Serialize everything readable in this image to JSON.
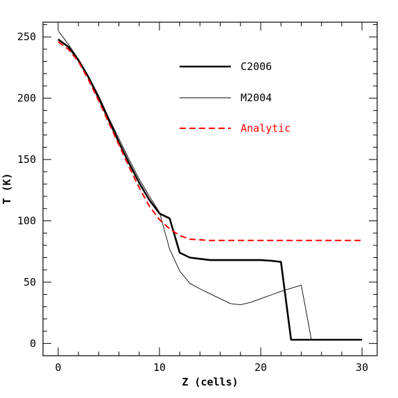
{
  "chart_data": {
    "type": "line",
    "xlabel": "Z (cells)",
    "ylabel": "T (K)",
    "xlim": [
      -1.5,
      31.5
    ],
    "ylim": [
      -10,
      262
    ],
    "xticks": [
      0,
      10,
      20,
      30
    ],
    "yticks": [
      0,
      50,
      100,
      150,
      200,
      250
    ],
    "xtick_labels": [
      "0",
      "10",
      "20",
      "30"
    ],
    "ytick_labels": [
      "0",
      "50",
      "100",
      "150",
      "200",
      "250"
    ],
    "x_minor_step": 2,
    "y_minor_step": 10,
    "grid": false,
    "legend_position": "top-right",
    "series": [
      {
        "name": "C2006",
        "color": "#000000",
        "style": "solid-thick",
        "x": [
          0,
          1,
          2,
          3,
          4,
          5,
          6,
          7,
          8,
          9,
          10,
          11,
          12,
          13,
          14,
          15,
          16,
          17,
          18,
          19,
          20,
          21,
          22,
          23,
          24,
          25,
          26,
          27,
          28,
          29,
          30
        ],
        "y": [
          248,
          242,
          231,
          217,
          200,
          182,
          164,
          147,
          131,
          117,
          106,
          102,
          74,
          70,
          69,
          68,
          68,
          68,
          68,
          68,
          68,
          67.5,
          66.5,
          3,
          3,
          3,
          3,
          3,
          3,
          3,
          3
        ]
      },
      {
        "name": "M2004",
        "color": "#000000",
        "style": "solid-thin",
        "x": [
          0,
          1,
          2,
          3,
          4,
          5,
          6,
          7,
          8,
          9,
          10,
          11,
          12,
          13,
          14,
          15,
          16,
          17,
          18,
          19,
          20,
          21,
          22,
          23,
          24,
          25,
          26,
          27,
          28,
          29,
          30
        ],
        "y": [
          255,
          244,
          232,
          218,
          202,
          184,
          167,
          150,
          134,
          120,
          107,
          77,
          59,
          49,
          44.5,
          40.5,
          36.5,
          32.5,
          31.5,
          33.5,
          36.5,
          39.5,
          42.5,
          45,
          47.5,
          3,
          3,
          3,
          3,
          3,
          3
        ]
      },
      {
        "name": "Analytic",
        "color": "#ff0000",
        "style": "dashed",
        "x": [
          0,
          1,
          2,
          3,
          4,
          5,
          6,
          7,
          8,
          9,
          10,
          11,
          12,
          13,
          14,
          15,
          16,
          17,
          18,
          19,
          20,
          21,
          22,
          23,
          24,
          25,
          26,
          27,
          28,
          29,
          30
        ],
        "y": [
          246,
          240,
          230,
          215,
          198,
          180,
          162,
          144,
          127,
          112,
          101,
          93.5,
          88,
          85,
          84.5,
          84,
          84,
          84,
          84,
          84,
          84,
          84,
          84,
          84,
          84,
          84,
          84,
          84,
          84,
          84,
          84
        ]
      }
    ]
  }
}
